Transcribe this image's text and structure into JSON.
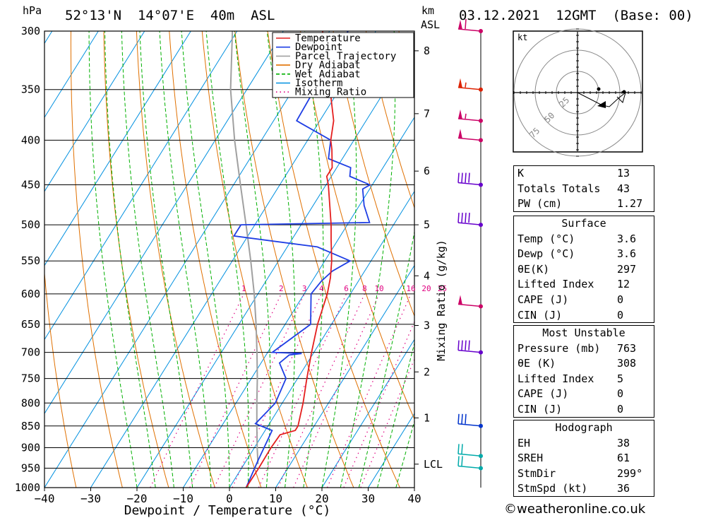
{
  "header": {
    "hpa_label": "hPa",
    "location": "52°13'N  14°07'E  40m  ASL",
    "km_label": "km",
    "asl_label": "ASL",
    "datetime": "03.12.2021  12GMT  (Base: 00)"
  },
  "chart_data": {
    "type": "line",
    "xlabel": "Dewpoint / Temperature (°C)",
    "ylabel": "hPa",
    "xlim": [
      -40,
      40
    ],
    "ylim": [
      1000,
      300
    ],
    "y_scale": "log",
    "x_ticks": [
      "−40",
      "−30",
      "−20",
      "−10",
      "0",
      "10",
      "20",
      "30",
      "40"
    ],
    "pressure_ticks": [
      300,
      350,
      400,
      450,
      500,
      550,
      600,
      650,
      700,
      750,
      800,
      850,
      900,
      950,
      1000
    ],
    "height_ticks": [
      {
        "label": "8",
        "p": 316
      },
      {
        "label": "7",
        "p": 373
      },
      {
        "label": "6",
        "p": 434
      },
      {
        "label": "5",
        "p": 500
      },
      {
        "label": "4",
        "p": 572
      },
      {
        "label": "3",
        "p": 652
      },
      {
        "label": "2",
        "p": 737
      },
      {
        "label": "1",
        "p": 832
      },
      {
        "label": "LCL",
        "p": 940
      }
    ],
    "mixing_ratio_axis_label": "Mixing Ratio (g/kg)",
    "mixing_ratio_labels": [
      "1",
      "2",
      "3",
      "4",
      "6",
      "8",
      "10",
      "16",
      "20",
      "25"
    ],
    "mixing_ratio_values": [
      1,
      2,
      3,
      4,
      6,
      8,
      10,
      16,
      20,
      25
    ],
    "legend": [
      "Temperature",
      "Dewpoint",
      "Parcel Trajectory",
      "Dry Adiabat",
      "Wet Adiabat",
      "Isotherm",
      "Mixing Ratio"
    ],
    "legend_position": "top-right",
    "colors": {
      "temperature": "#e41e1e",
      "dewpoint": "#1e3ee4",
      "parcel": "#a0a0a0",
      "dry_adiabat": "#e07000",
      "wet_adiabat": "#00b000",
      "isotherm": "#0090e0",
      "mixing_ratio": "#e00080"
    },
    "series": [
      {
        "name": "Temperature",
        "points": [
          [
            1000,
            3.6
          ],
          [
            950,
            3.7
          ],
          [
            900,
            3.6
          ],
          [
            870,
            3.8
          ],
          [
            860,
            6.5
          ],
          [
            850,
            6.5
          ],
          [
            800,
            4.5
          ],
          [
            750,
            2.0
          ],
          [
            700,
            -0.5
          ],
          [
            650,
            -3.0
          ],
          [
            600,
            -5.0
          ],
          [
            575,
            -6.5
          ],
          [
            550,
            -8.5
          ],
          [
            520,
            -11.5
          ],
          [
            500,
            -13.5
          ],
          [
            450,
            -19.5
          ],
          [
            440,
            -21.0
          ],
          [
            430,
            -21.0
          ],
          [
            410,
            -23.5
          ],
          [
            400,
            -25.0
          ],
          [
            380,
            -27.0
          ],
          [
            350,
            -32.0
          ],
          [
            320,
            -37.5
          ],
          [
            300,
            -41.5
          ]
        ]
      },
      {
        "name": "Dewpoint",
        "points": [
          [
            1000,
            3.6
          ],
          [
            930,
            2.5
          ],
          [
            880,
            1.8
          ],
          [
            860,
            1.5
          ],
          [
            845,
            -3.0
          ],
          [
            800,
            -1.5
          ],
          [
            750,
            -2.5
          ],
          [
            720,
            -6.0
          ],
          [
            705,
            -5.0
          ],
          [
            702,
            -2.5
          ],
          [
            700,
            -9.0
          ],
          [
            650,
            -4.5
          ],
          [
            600,
            -8.5
          ],
          [
            580,
            -8.0
          ],
          [
            565,
            -7.0
          ],
          [
            550,
            -4.5
          ],
          [
            530,
            -13.5
          ],
          [
            515,
            -33.0
          ],
          [
            500,
            -33.0
          ],
          [
            497,
            -5.5
          ],
          [
            475,
            -9.0
          ],
          [
            455,
            -11.5
          ],
          [
            450,
            -10.5
          ],
          [
            440,
            -16.0
          ],
          [
            430,
            -17.0
          ],
          [
            420,
            -23.0
          ],
          [
            410,
            -24.0
          ],
          [
            400,
            -25.0
          ],
          [
            382,
            -34.0
          ],
          [
            380,
            -35.0
          ],
          [
            300,
            -36.0
          ]
        ]
      },
      {
        "name": "Parcel Trajectory",
        "points": [
          [
            940,
            3.0
          ],
          [
            900,
            0.6
          ],
          [
            850,
            -2.4
          ],
          [
            800,
            -5.5
          ],
          [
            750,
            -8.7
          ],
          [
            700,
            -12.3
          ],
          [
            650,
            -16.3
          ],
          [
            600,
            -20.8
          ],
          [
            550,
            -26.0
          ],
          [
            500,
            -31.9
          ],
          [
            450,
            -38.5
          ],
          [
            400,
            -45.8
          ],
          [
            350,
            -53.5
          ],
          [
            300,
            -61.0
          ]
        ]
      }
    ],
    "wind_barbs": [
      {
        "p": 300,
        "speed": 60,
        "color": "#cc0066"
      },
      {
        "p": 350,
        "speed": 55,
        "color": "#dd2200"
      },
      {
        "p": 380,
        "speed": 55,
        "color": "#cc0066"
      },
      {
        "p": 400,
        "speed": 50,
        "color": "#cc0066"
      },
      {
        "p": 450,
        "speed": 40,
        "color": "#6600cc"
      },
      {
        "p": 500,
        "speed": 40,
        "color": "#6600cc"
      },
      {
        "p": 620,
        "speed": 50,
        "color": "#cc0066"
      },
      {
        "p": 700,
        "speed": 40,
        "color": "#6600cc"
      },
      {
        "p": 850,
        "speed": 30,
        "color": "#0033cc"
      },
      {
        "p": 920,
        "speed": 20,
        "color": "#00aaaa"
      },
      {
        "p": 950,
        "speed": 20,
        "color": "#00aaaa"
      }
    ]
  },
  "hodograph": {
    "unit_label": "kt",
    "ring_labels": [
      "25",
      "50",
      "75"
    ]
  },
  "indices": {
    "top": [
      {
        "label": "K",
        "value": "13"
      },
      {
        "label": "Totals Totals",
        "value": "43"
      },
      {
        "label": "PW (cm)",
        "value": "1.27"
      }
    ],
    "surface": {
      "title": "Surface",
      "rows": [
        {
          "label": "Temp (°C)",
          "value": "3.6"
        },
        {
          "label": "Dewp (°C)",
          "value": "3.6"
        },
        {
          "label": "θE(K)",
          "value": "297"
        },
        {
          "label": "Lifted Index",
          "value": "12"
        },
        {
          "label": "CAPE (J)",
          "value": "0"
        },
        {
          "label": "CIN (J)",
          "value": "0"
        }
      ]
    },
    "most_unstable": {
      "title": "Most Unstable",
      "rows": [
        {
          "label": "Pressure (mb)",
          "value": "763"
        },
        {
          "label": "θE (K)",
          "value": "308"
        },
        {
          "label": "Lifted Index",
          "value": "5"
        },
        {
          "label": "CAPE (J)",
          "value": "0"
        },
        {
          "label": "CIN (J)",
          "value": "0"
        }
      ]
    },
    "hodograph_box": {
      "title": "Hodograph",
      "rows": [
        {
          "label": "EH",
          "value": "38"
        },
        {
          "label": "SREH",
          "value": "61"
        },
        {
          "label": "StmDir",
          "value": "299°"
        },
        {
          "label": "StmSpd (kt)",
          "value": "36"
        }
      ]
    }
  },
  "credit": "©weatheronline.co.uk"
}
